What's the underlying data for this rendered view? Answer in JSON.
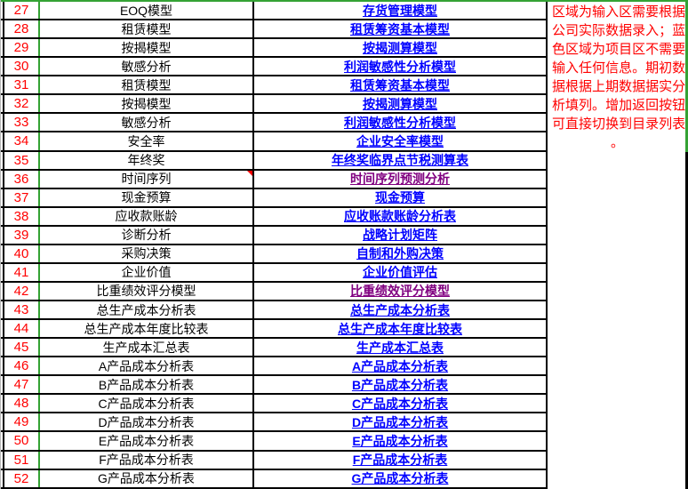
{
  "colors": {
    "grid_green": "#34A234",
    "grid_black": "#000000",
    "row_number_red": "#FF0000",
    "note_red": "#FF0000",
    "link_blue": "#0000FF",
    "link_visited_purple": "#800080"
  },
  "icons": {
    "comment_indicator": "red-triangle-top-right"
  },
  "table": {
    "rows": [
      {
        "num": "27",
        "name": "EOQ模型",
        "link": "存货管理模型",
        "visited": false,
        "comment": false
      },
      {
        "num": "28",
        "name": "租赁模型",
        "link": "租赁筹资基本模型",
        "visited": false,
        "comment": false
      },
      {
        "num": "29",
        "name": "按揭模型",
        "link": "按揭测算模型",
        "visited": false,
        "comment": false
      },
      {
        "num": "30",
        "name": "敏感分析",
        "link": "利润敏感性分析模型",
        "visited": false,
        "comment": false
      },
      {
        "num": "31",
        "name": "租赁模型",
        "link": "租赁筹资基本模型",
        "visited": false,
        "comment": false
      },
      {
        "num": "32",
        "name": "按揭模型",
        "link": "按揭测算模型",
        "visited": false,
        "comment": false
      },
      {
        "num": "33",
        "name": "敏感分析",
        "link": "利润敏感性分析模型",
        "visited": false,
        "comment": false
      },
      {
        "num": "34",
        "name": "安全率",
        "link": "企业安全率模型",
        "visited": false,
        "comment": false
      },
      {
        "num": "35",
        "name": "年终奖",
        "link": "年终奖临界点节税测算表",
        "visited": false,
        "comment": false
      },
      {
        "num": "36",
        "name": "时间序列",
        "link": "时间序列预测分析",
        "visited": true,
        "comment": true
      },
      {
        "num": "37",
        "name": "现金预算",
        "link": "现金预算",
        "visited": false,
        "comment": false
      },
      {
        "num": "38",
        "name": "应收款账龄",
        "link": "应收账款账龄分析表",
        "visited": false,
        "comment": false
      },
      {
        "num": "39",
        "name": "诊断分析",
        "link": "战略计划矩阵",
        "visited": false,
        "comment": false
      },
      {
        "num": "40",
        "name": "采购决策",
        "link": "自制和外购决策",
        "visited": false,
        "comment": false
      },
      {
        "num": "41",
        "name": "企业价值",
        "link": "企业价值评估",
        "visited": false,
        "comment": false
      },
      {
        "num": "42",
        "name": "比重绩效评分模型",
        "link": "比重绩效评分模型",
        "visited": true,
        "comment": false
      },
      {
        "num": "43",
        "name": "总生产成本分析表",
        "link": "总生产成本分析表",
        "visited": false,
        "comment": false
      },
      {
        "num": "44",
        "name": "总生产成本年度比较表",
        "link": "总生产成本年度比较表",
        "visited": false,
        "comment": false
      },
      {
        "num": "45",
        "name": "生产成本汇总表",
        "link": "生产成本汇总表",
        "visited": false,
        "comment": false
      },
      {
        "num": "46",
        "name": "A产品成本分析表",
        "link": "A产品成本分析表",
        "visited": false,
        "comment": false
      },
      {
        "num": "47",
        "name": "B产品成本分析表",
        "link": "B产品成本分析表",
        "visited": false,
        "comment": false
      },
      {
        "num": "48",
        "name": "C产品成本分析表",
        "link": "C产品成本分析表",
        "visited": false,
        "comment": false
      },
      {
        "num": "49",
        "name": "D产品成本分析表",
        "link": "D产品成本分析表",
        "visited": false,
        "comment": false
      },
      {
        "num": "50",
        "name": "E产品成本分析表",
        "link": "E产品成本分析表",
        "visited": false,
        "comment": false
      },
      {
        "num": "51",
        "name": "F产品成本分析表",
        "link": "F产品成本分析表",
        "visited": false,
        "comment": false
      },
      {
        "num": "52",
        "name": "G产品成本分析表",
        "link": "G产品成本分析表",
        "visited": false,
        "comment": false
      }
    ]
  },
  "annotation": {
    "full_text": "区域为输入区需要根据公司实际数据录入；蓝色区域为项目区不需要输入任何信息。期初数据根据上期数据据实分析填列。增加返回按钮可直接切换到目录列表。",
    "lines": [
      "区域为输入区需要根据",
      "公司实际数据录入；蓝",
      "色区域为项目区不需要",
      "输入任何信息。期初数",
      "据根据上期数据据实分",
      "析填列。增加返回按钮",
      "可直接切换到目录列表",
      "。"
    ]
  }
}
